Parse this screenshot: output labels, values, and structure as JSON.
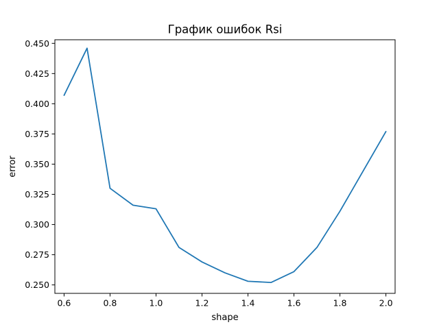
{
  "chart_data": {
    "type": "line",
    "title": "График ошибок Rsi",
    "xlabel": "shape",
    "ylabel": "error",
    "xlim": [
      0.56,
      2.04
    ],
    "ylim": [
      0.243,
      0.453
    ],
    "xticks": [
      0.6,
      0.8,
      1.0,
      1.2,
      1.4,
      1.6,
      1.8,
      2.0
    ],
    "xtick_labels": [
      "0.6",
      "0.8",
      "1.0",
      "1.2",
      "1.4",
      "1.6",
      "1.8",
      "2.0"
    ],
    "yticks": [
      0.25,
      0.275,
      0.3,
      0.325,
      0.35,
      0.375,
      0.4,
      0.425,
      0.45
    ],
    "ytick_labels": [
      "0.250",
      "0.275",
      "0.300",
      "0.325",
      "0.350",
      "0.375",
      "0.400",
      "0.425",
      "0.450"
    ],
    "grid": false,
    "series": [
      {
        "color": "#1f77b4",
        "x": [
          0.6,
          0.7,
          0.8,
          0.9,
          1.0,
          1.1,
          1.2,
          1.3,
          1.4,
          1.5,
          1.6,
          1.7,
          1.8,
          1.9,
          2.0
        ],
        "y": [
          0.407,
          0.446,
          0.33,
          0.316,
          0.313,
          0.281,
          0.269,
          0.26,
          0.253,
          0.252,
          0.261,
          0.281,
          0.311,
          0.344,
          0.377
        ]
      }
    ]
  }
}
